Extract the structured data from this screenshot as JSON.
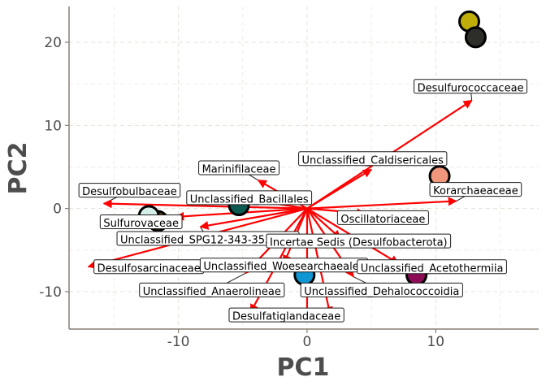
{
  "chart_data": {
    "type": "scatter",
    "title": "",
    "xlabel": "PC1",
    "ylabel": "PC2",
    "xlim": [
      -18.5,
      18
    ],
    "ylim": [
      -14.5,
      24.3
    ],
    "xticks": [
      -10,
      0,
      10
    ],
    "yticks": [
      -10,
      0,
      10,
      20
    ],
    "grid": true,
    "origin": [
      0,
      0
    ],
    "arrow_color": "#ff0000",
    "points": [
      {
        "x": 12.6,
        "y": 22.5,
        "color": "#bfae0a"
      },
      {
        "x": 13.1,
        "y": 20.6,
        "color": "#2d2d2a"
      },
      {
        "x": 10.3,
        "y": 3.9,
        "color": "#f0967a"
      },
      {
        "x": -5.3,
        "y": 0.4,
        "color": "#0b5a52"
      },
      {
        "x": -11.6,
        "y": -1.5,
        "color": "#6b4410"
      },
      {
        "x": -12.3,
        "y": -0.9,
        "color": "#d4eeea"
      },
      {
        "x": -0.2,
        "y": -8.0,
        "color": "#0d96d2"
      },
      {
        "x": 8.5,
        "y": -8.0,
        "color": "#8c0d55"
      }
    ],
    "loadings": [
      {
        "name": "Desulfurococcaceae",
        "x": 12.8,
        "y": 13.0,
        "lx": 12.7,
        "ly": 14.6
      },
      {
        "name": "Unclassified_Caldisericales",
        "x": 5.0,
        "y": 4.7,
        "lx": 5.1,
        "ly": 5.9
      },
      {
        "name": "Marinifilaceae",
        "x": -3.8,
        "y": 3.4,
        "lx": -5.3,
        "ly": 4.8
      },
      {
        "name": "Korarchaeaceae",
        "x": 11.6,
        "y": 0.9,
        "lx": 13.1,
        "ly": 2.2
      },
      {
        "name": "Desulfobulbaceae",
        "x": -15.8,
        "y": 0.6,
        "lx": -13.8,
        "ly": 2.1
      },
      {
        "name": "Unclassified_Bacillales",
        "x": -5.1,
        "y": 1.2,
        "lx": -4.5,
        "ly": 1.2
      },
      {
        "name": "Oscillatoriaceae",
        "x": 4.5,
        "y": -0.6,
        "lx": 5.9,
        "ly": -1.2
      },
      {
        "name": "Sulfurovaceae",
        "x": -10.2,
        "y": -1.0,
        "lx": -12.9,
        "ly": -1.7
      },
      {
        "name": "Unclassified_SPG12-343-353-B69",
        "x": -8.3,
        "y": -2.2,
        "lx": -7.7,
        "ly": -3.7
      },
      {
        "name": "Incertae Sedis (Desulfobacterota)",
        "x": 2.6,
        "y": -3.6,
        "lx": 4.0,
        "ly": -4.0
      },
      {
        "name": "Desulfosarcinaceae",
        "x": -17.0,
        "y": -7.0,
        "lx": -12.3,
        "ly": -7.1
      },
      {
        "name": "Unclassified_Woesearchaeales",
        "x": -1.8,
        "y": -6.6,
        "lx": -1.8,
        "ly": -6.9
      },
      {
        "name": "Unclassified_Acetothermiia",
        "x": 7.1,
        "y": -6.6,
        "lx": 9.7,
        "ly": -7.1
      },
      {
        "name": "Unclassified_Anaerolineae",
        "x": -4.8,
        "y": -7.8,
        "lx": -7.4,
        "ly": -9.9
      },
      {
        "name": "Unclassified_Dehalococcoidia",
        "x": 3.6,
        "y": -8.2,
        "lx": 5.8,
        "ly": -9.9
      },
      {
        "name": "Desulfatiglandaceae",
        "x": -4.4,
        "y": -12.5,
        "lx": -1.6,
        "ly": -12.9
      },
      {
        "name": "",
        "x": 1.8,
        "y": -12.8
      },
      {
        "name": "",
        "x": 0.0,
        "y": -13.2
      }
    ]
  }
}
